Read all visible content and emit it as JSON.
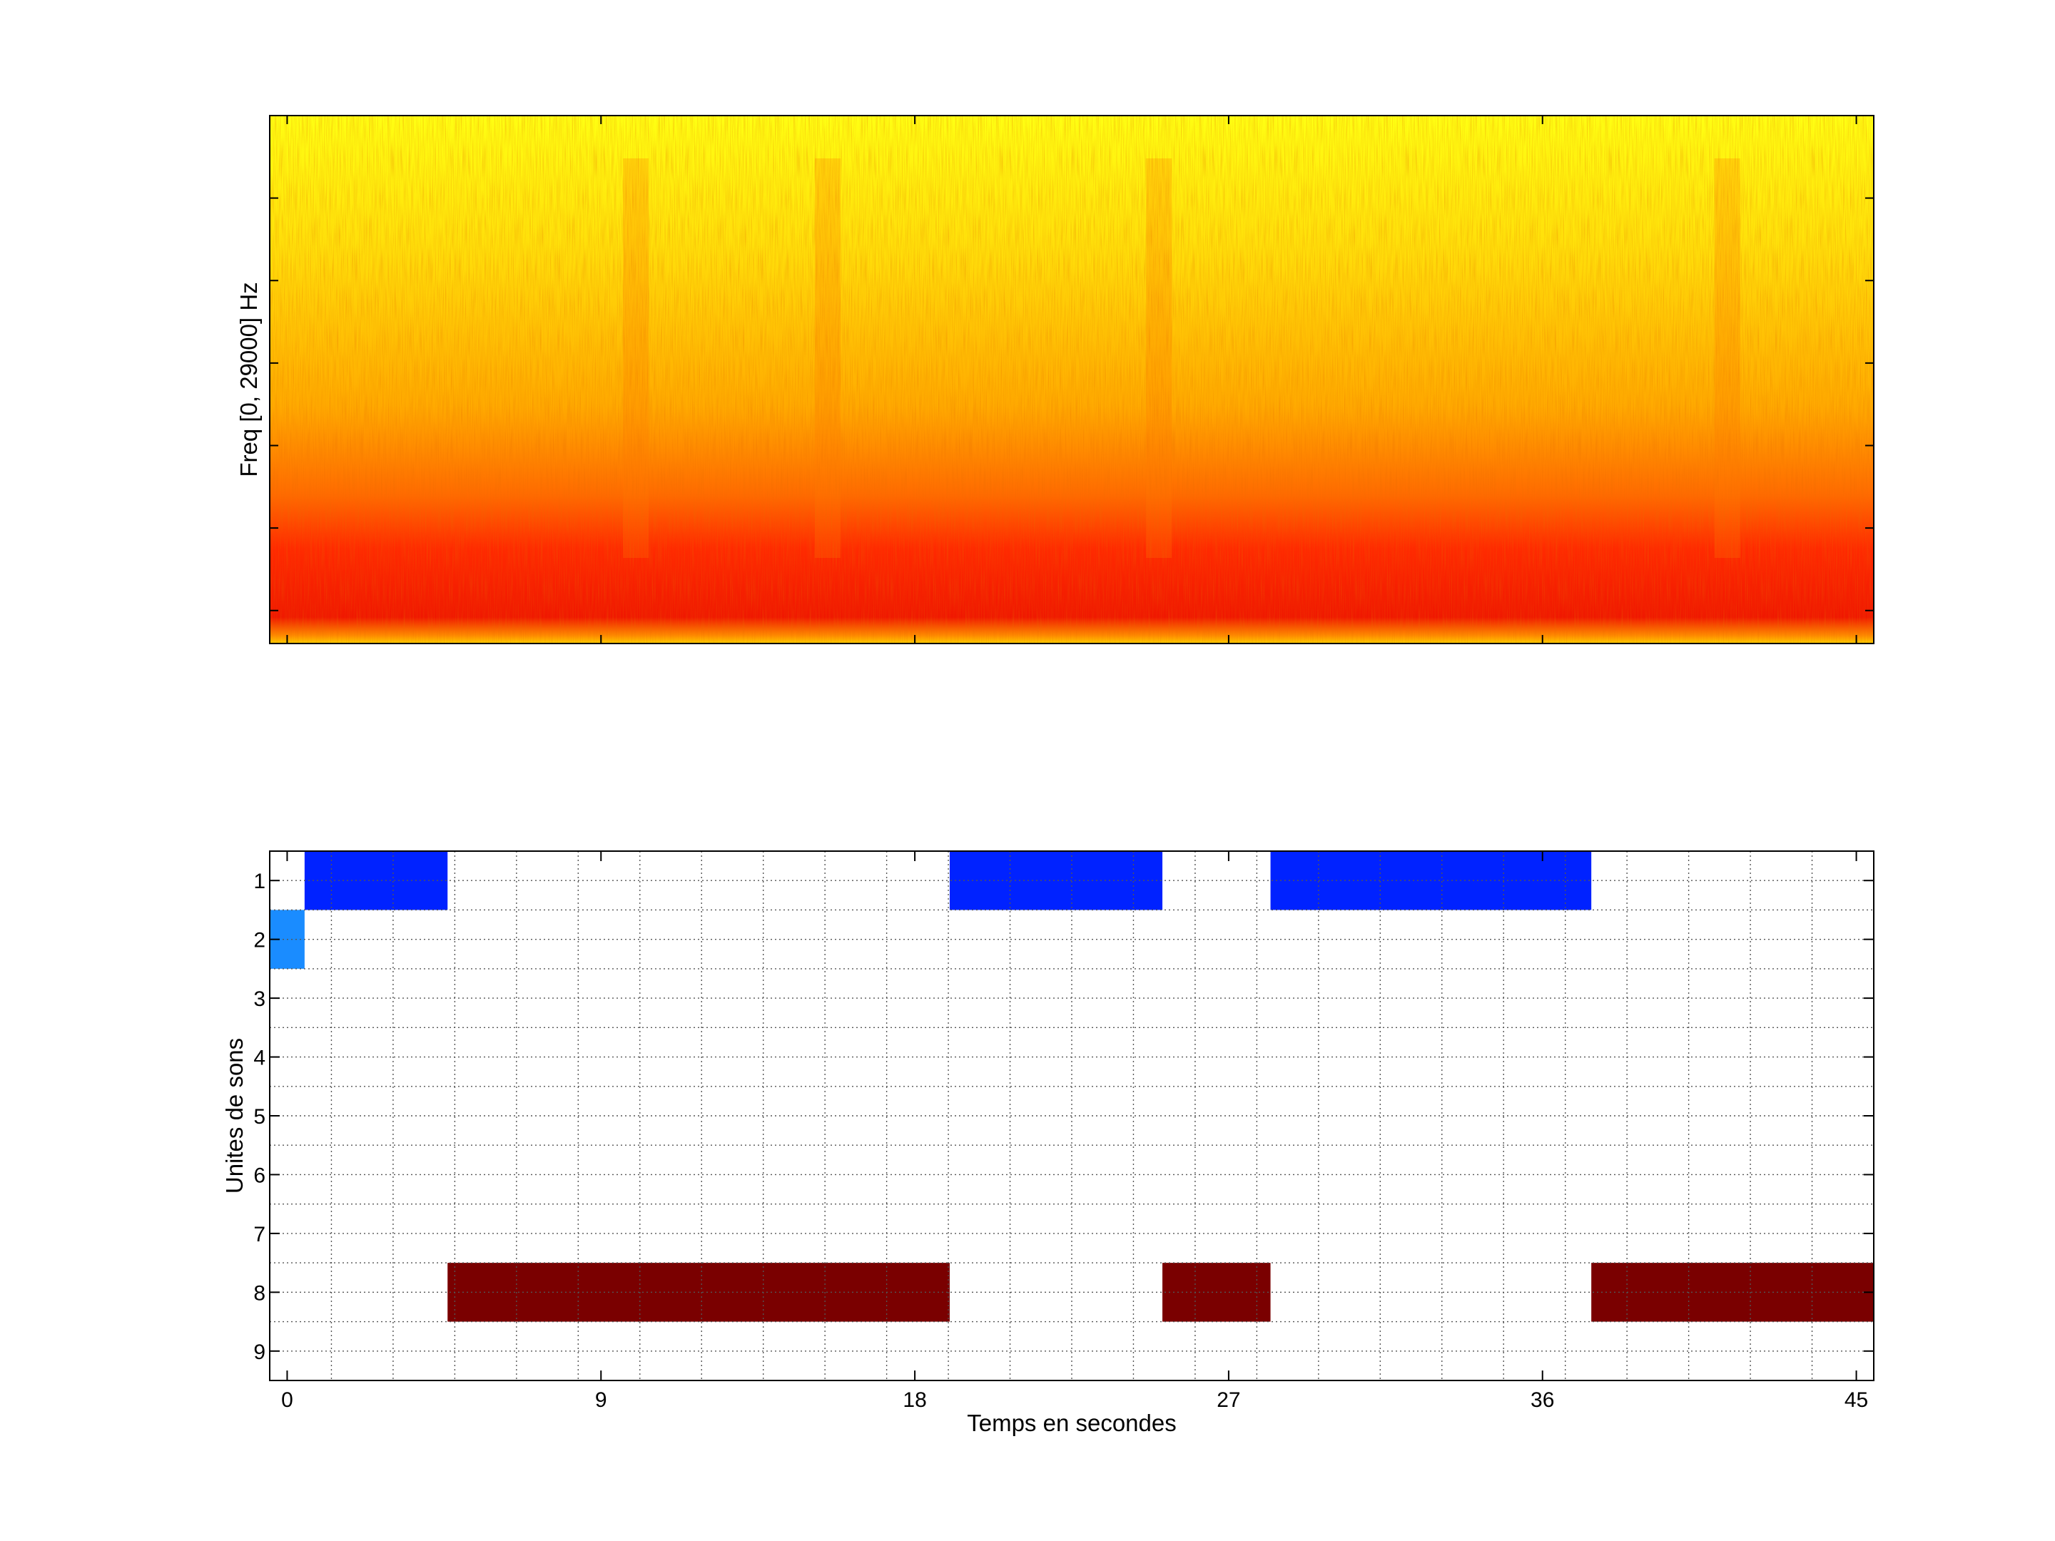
{
  "chart_data": [
    {
      "type": "heatmap",
      "subtype": "spectrogram",
      "title": "",
      "xlabel": "",
      "ylabel": "Freq [0, 29000] Hz",
      "ylim_hz": [
        0,
        29000
      ],
      "xlim_s": [
        -0.5,
        45.5
      ],
      "colormap": [
        "#ff0000",
        "#ff7a00",
        "#ffd400",
        "#ffff00"
      ],
      "energy_profile_by_height": "strongest (red) in lowest ~25% of frequency band, fading to yellow at top",
      "vertical_streaks_s": [
        10,
        15.5,
        25,
        41.3
      ],
      "tick_labels_shown": false
    },
    {
      "type": "heatmap",
      "subtype": "segment-occupancy",
      "title": "",
      "xlabel": "Temps en secondes",
      "ylabel": "Unites de sons",
      "x_ticks": [
        0,
        9,
        18,
        27,
        36,
        45
      ],
      "x_tick_labels": [
        "0",
        "9",
        "18",
        "27",
        "36",
        "45"
      ],
      "xlim": [
        -0.5,
        45.5
      ],
      "y_ticks": [
        1,
        2,
        3,
        4,
        5,
        6,
        7,
        8,
        9
      ],
      "y_tick_labels": [
        "1",
        "2",
        "3",
        "4",
        "5",
        "6",
        "7",
        "8",
        "9"
      ],
      "ylim": [
        0.5,
        9.5
      ],
      "grid": true,
      "segments": [
        {
          "unit": 2,
          "start": -0.5,
          "end": 0.5,
          "color": "#1a8cff"
        },
        {
          "unit": 1,
          "start": 0.5,
          "end": 4.6,
          "color": "#0022ff"
        },
        {
          "unit": 8,
          "start": 4.6,
          "end": 19.0,
          "color": "#7a0000"
        },
        {
          "unit": 1,
          "start": 19.0,
          "end": 25.1,
          "color": "#0022ff"
        },
        {
          "unit": 8,
          "start": 25.1,
          "end": 28.2,
          "color": "#7a0000"
        },
        {
          "unit": 1,
          "start": 28.2,
          "end": 37.4,
          "color": "#0022ff"
        },
        {
          "unit": 8,
          "start": 37.4,
          "end": 45.5,
          "color": "#7a0000"
        }
      ]
    }
  ]
}
